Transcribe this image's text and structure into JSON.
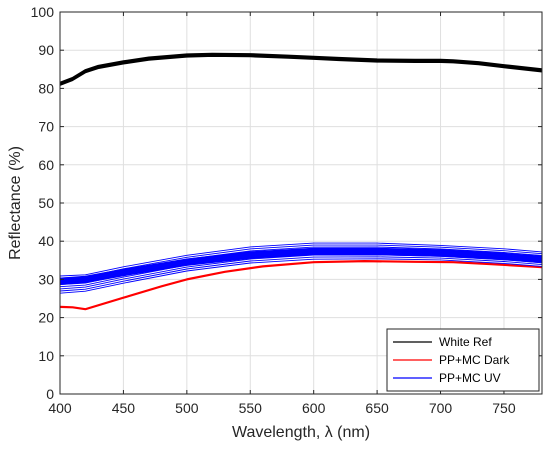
{
  "chart_data": {
    "type": "line",
    "xlabel": "Wavelength, λ (nm)",
    "ylabel": "Reflectance (%)",
    "xlim": [
      400,
      780
    ],
    "ylim": [
      0,
      100
    ],
    "xticks": [
      400,
      450,
      500,
      550,
      600,
      650,
      700,
      750
    ],
    "yticks": [
      0,
      10,
      20,
      30,
      40,
      50,
      60,
      70,
      80,
      90,
      100
    ],
    "grid": true,
    "legend_position": "bottom-right",
    "series": [
      {
        "name": "White Ref",
        "color": "#000000",
        "band_width": 1.5,
        "x": [
          400,
          410,
          420,
          430,
          450,
          470,
          500,
          520,
          550,
          580,
          600,
          620,
          650,
          680,
          700,
          710,
          730,
          750,
          780
        ],
        "values": [
          81.2,
          82.5,
          84.5,
          85.6,
          86.8,
          87.8,
          88.6,
          88.8,
          88.7,
          88.3,
          88.0,
          87.7,
          87.3,
          87.2,
          87.2,
          87.1,
          86.6,
          85.8,
          84.7
        ]
      },
      {
        "name": "PP+MC Dark",
        "color": "#ff0000",
        "band_width": 0.6,
        "x": [
          400,
          410,
          420,
          450,
          480,
          500,
          530,
          560,
          600,
          640,
          680,
          710,
          740,
          760,
          780
        ],
        "values": [
          22.8,
          22.7,
          22.2,
          25.2,
          28.2,
          30.0,
          32.0,
          33.4,
          34.5,
          34.8,
          34.6,
          34.5,
          34.0,
          33.6,
          33.2
        ]
      },
      {
        "name": "PP+MC UV",
        "color": "#0000ff",
        "band_width": 3.0,
        "x": [
          400,
          420,
          450,
          500,
          550,
          600,
          650,
          700,
          750,
          780
        ],
        "values": [
          29.5,
          30.0,
          31.8,
          34.5,
          36.4,
          37.3,
          37.3,
          36.9,
          36.0,
          35.2
        ],
        "upper": [
          30.9,
          31.2,
          33.3,
          36.3,
          38.5,
          39.5,
          39.5,
          38.9,
          38.0,
          37.2
        ],
        "lower": [
          26.4,
          26.9,
          29.0,
          32.2,
          34.3,
          35.3,
          35.4,
          35.1,
          34.2,
          33.4
        ]
      }
    ]
  }
}
